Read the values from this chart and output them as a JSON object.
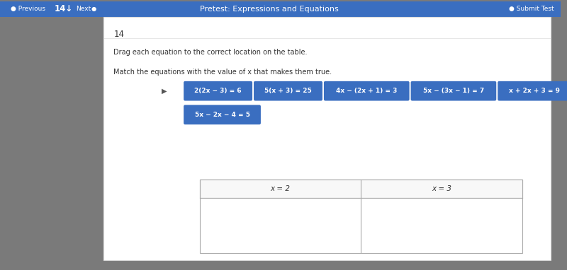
{
  "bg_color": "#7a7a7a",
  "top_bar_color": "#3a6ec0",
  "top_bar_text": "Pretest: Expressions and Equations",
  "top_bar_left_items": "● Previous   14↓   Next  ●",
  "top_bar_right_text": "● Submit Test",
  "question_number": "14",
  "instruction1": "Drag each equation to the correct location on the table.",
  "instruction2": "Match the equations with the value of x that makes them true.",
  "equations": [
    "2(2x − 3) = 6",
    "5(x + 3) = 25",
    "4x − (2x + 1) = 3",
    "5x − (3x − 1) = 7",
    "x + 2x + 3 = 9",
    "5x − 2x − 4 = 5"
  ],
  "eq_row1": [
    0,
    1,
    2,
    3,
    4
  ],
  "eq_row2": [
    5
  ],
  "button_color": "#3a6ec0",
  "button_text_color": "#ffffff",
  "table_header": [
    "x = 2",
    "x = 3"
  ],
  "table_border_color": "#aaaaaa",
  "cursor_arrow": "▶"
}
